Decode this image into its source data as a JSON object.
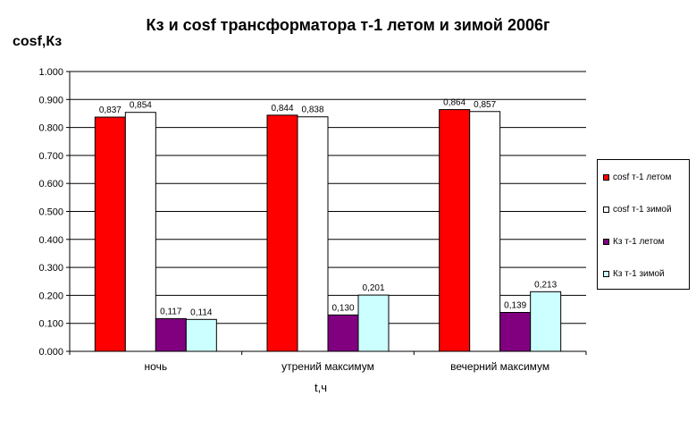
{
  "chart_data": {
    "type": "bar",
    "title": "Кз и cosf трансформатора т-1 летом и зимой 2006г",
    "ylabel": "cosf,Кз",
    "xlabel": "t,ч",
    "categories": [
      "ночь",
      "утрений максимум",
      "вечерний максимум"
    ],
    "ylim": [
      0,
      1.0
    ],
    "yticks": [
      "0.000",
      "0.100",
      "0.200",
      "0.300",
      "0.400",
      "0.500",
      "0.600",
      "0.700",
      "0.800",
      "0.900",
      "1.000"
    ],
    "ytick_values": [
      0,
      0.1,
      0.2,
      0.3,
      0.4,
      0.5,
      0.6,
      0.7,
      0.8,
      0.9,
      1.0
    ],
    "grid": true,
    "legend_position": "right",
    "series": [
      {
        "name": "cosf т-1 летом",
        "values": [
          0.837,
          0.844,
          0.864
        ],
        "labels": [
          "0,837",
          "0,844",
          "0,864"
        ],
        "color": "#ff0000"
      },
      {
        "name": "cosf т-1 зимой",
        "values": [
          0.854,
          0.838,
          0.857
        ],
        "labels": [
          "0,854",
          "0,838",
          "0,857"
        ],
        "color": "#ffffff"
      },
      {
        "name": "Кз т-1 летом",
        "values": [
          0.117,
          0.13,
          0.139
        ],
        "labels": [
          "0,117",
          "0,130",
          "0,139"
        ],
        "color": "#800080"
      },
      {
        "name": "Кз т-1 зимой",
        "values": [
          0.114,
          0.201,
          0.213
        ],
        "labels": [
          "0,114",
          "0,201",
          "0,213"
        ],
        "color": "#ccffff"
      }
    ]
  }
}
